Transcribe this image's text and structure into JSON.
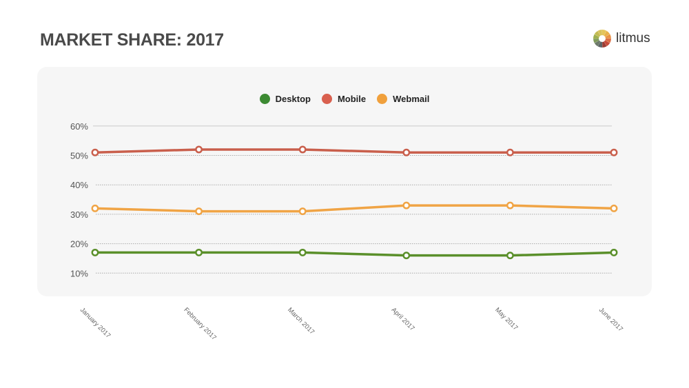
{
  "title": "MARKET SHARE: 2017",
  "logo": {
    "text": "litmus"
  },
  "chart_data": {
    "type": "line",
    "title": "",
    "xlabel": "",
    "ylabel": "",
    "categories": [
      "January 2017",
      "February 2017",
      "March 2017",
      "April 2017",
      "May 2017",
      "June 2017"
    ],
    "y_ticks": [
      "10%",
      "20%",
      "30%",
      "40%",
      "50%",
      "60%"
    ],
    "y_tick_values": [
      10,
      20,
      30,
      40,
      50,
      60
    ],
    "ylim": [
      0,
      60
    ],
    "grid": true,
    "legend_position": "top-center",
    "series": [
      {
        "name": "Desktop",
        "color": "#5a8f2a",
        "legend_color": "#3c8a32",
        "values": [
          17,
          17,
          17,
          16,
          16,
          17
        ]
      },
      {
        "name": "Mobile",
        "color": "#c95f4c",
        "legend_color": "#d9604f",
        "values": [
          51,
          52,
          52,
          51,
          51,
          51
        ]
      },
      {
        "name": "Webmail",
        "color": "#f0a445",
        "legend_color": "#f0a03c",
        "values": [
          32,
          31,
          31,
          33,
          33,
          32
        ]
      }
    ]
  }
}
